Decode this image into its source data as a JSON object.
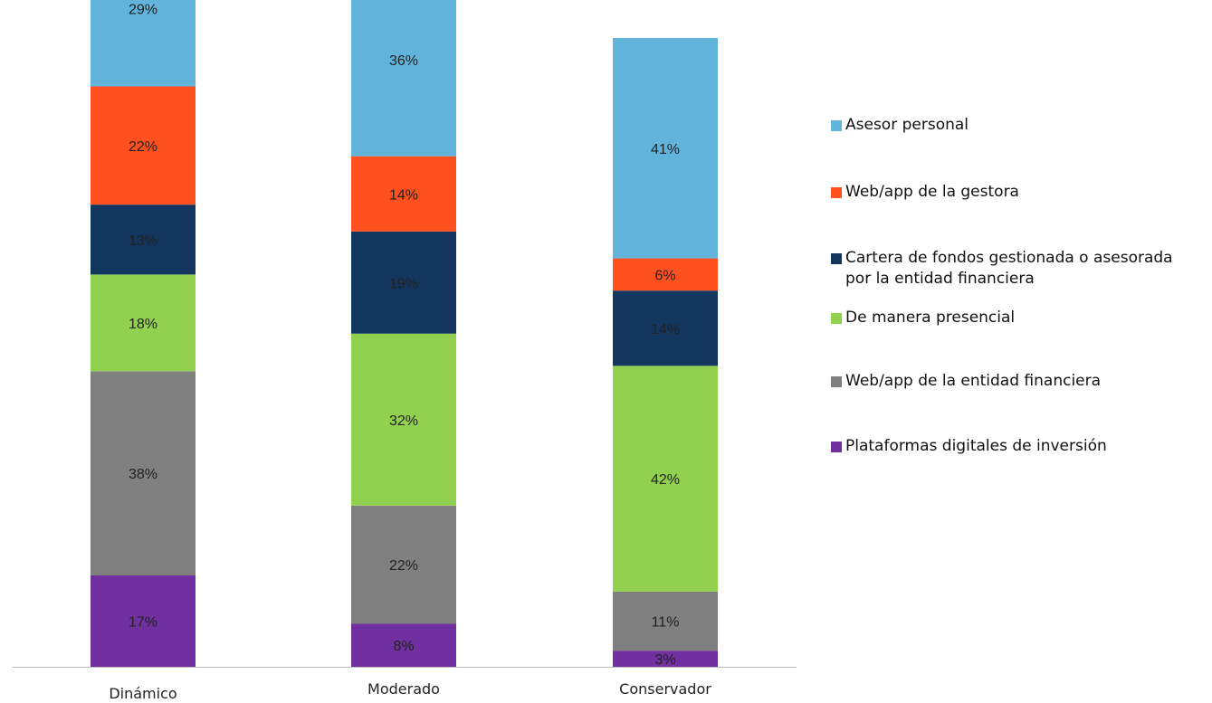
{
  "chart_data": {
    "type": "bar",
    "stacked": true,
    "orientation": "vertical",
    "categories": [
      "Dinámico",
      "Moderado",
      "Conservador"
    ],
    "series": [
      {
        "name": "Plataformas digitales de inversión",
        "color": "#7030A0",
        "values": [
          17,
          8,
          3
        ],
        "labels": [
          "17%",
          "8%",
          "3%"
        ]
      },
      {
        "name": "Web/app de la entidad financiera",
        "color": "#808080",
        "values": [
          38,
          22,
          11
        ],
        "labels": [
          "38%",
          "22%",
          "11%"
        ]
      },
      {
        "name": "De manera presencial",
        "color": "#92D050",
        "values": [
          18,
          32,
          42
        ],
        "labels": [
          "18%",
          "32%",
          "42%"
        ]
      },
      {
        "name": "Cartera de fondos gestionada o asesorada\npor la entidad financiera",
        "color": "#13365F",
        "values": [
          13,
          19,
          14
        ],
        "labels": [
          "13%",
          "19%",
          "14%"
        ]
      },
      {
        "name": "Web/app de la gestora",
        "color": "#FF5020",
        "values": [
          22,
          14,
          6
        ],
        "labels": [
          "22%",
          "14%",
          "6%"
        ]
      },
      {
        "name": "Asesor personal",
        "color": "#63B4DC",
        "values": [
          29,
          36,
          41
        ],
        "labels": [
          "29%",
          "36%",
          "41%"
        ]
      }
    ],
    "legend_order": [
      5,
      4,
      3,
      2,
      1,
      0
    ],
    "legend_position": "right",
    "grid": false,
    "title": "",
    "xlabel": "",
    "ylabel": ""
  }
}
